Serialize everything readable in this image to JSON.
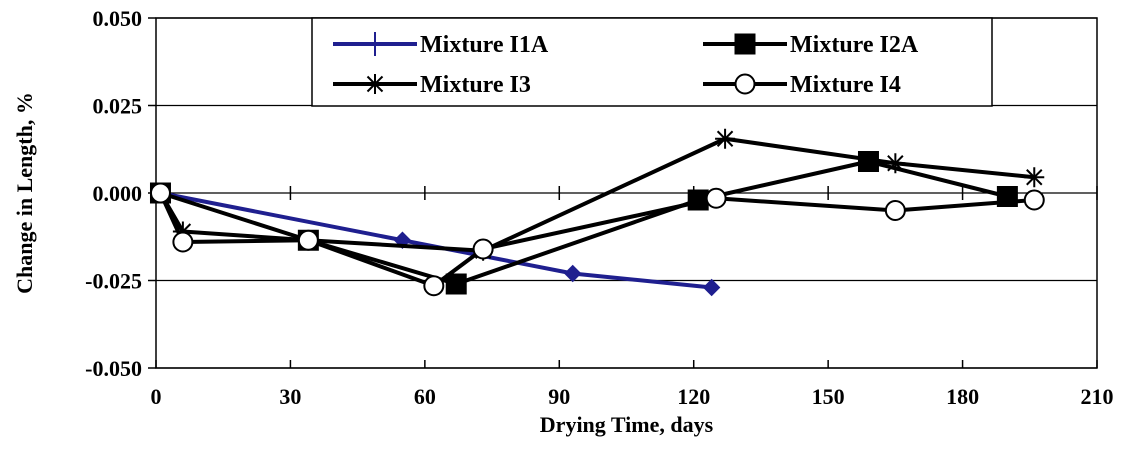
{
  "chart_data": {
    "type": "line",
    "title": "",
    "xlabel": "Drying Time, days",
    "ylabel": "Change in Length, %",
    "xlim": [
      0,
      210
    ],
    "ylim": [
      -0.05,
      0.05
    ],
    "x_ticks": [
      0,
      30,
      60,
      90,
      120,
      150,
      180,
      210
    ],
    "x_tick_labels": [
      "0",
      "30",
      "60",
      "90",
      "120",
      "150",
      "180",
      "210"
    ],
    "y_ticks": [
      0.05,
      0.025,
      0.0,
      -0.025,
      -0.05
    ],
    "y_tick_labels": [
      "0.050",
      "0.025",
      "0.000",
      "-0.025",
      "-0.050"
    ],
    "grid": "horizontal",
    "legend": "top",
    "series": [
      {
        "name": "Mixture I1A",
        "color": "#1f1f8f",
        "marker": "diamond",
        "x": [
          1,
          55,
          93,
          124
        ],
        "y": [
          0.0,
          -0.0135,
          -0.023,
          -0.027
        ]
      },
      {
        "name": "Mixture I2A",
        "color": "#000000",
        "marker": "square",
        "x": [
          1,
          34,
          67,
          121,
          159,
          190
        ],
        "y": [
          0.0,
          -0.0135,
          -0.026,
          -0.002,
          0.009,
          -0.001
        ]
      },
      {
        "name": "Mixture I3",
        "color": "#000000",
        "marker": "star",
        "x": [
          1,
          6,
          34,
          73,
          127,
          165,
          196
        ],
        "y": [
          0.0,
          -0.011,
          -0.0135,
          -0.0165,
          0.0155,
          0.0085,
          0.0045
        ]
      },
      {
        "name": "Mixture I4",
        "color": "#000000",
        "marker": "circle",
        "x": [
          1,
          6,
          34,
          62,
          73,
          125,
          165,
          196
        ],
        "y": [
          0.0,
          -0.014,
          -0.0135,
          -0.0265,
          -0.016,
          -0.0015,
          -0.005,
          -0.002
        ]
      }
    ]
  }
}
